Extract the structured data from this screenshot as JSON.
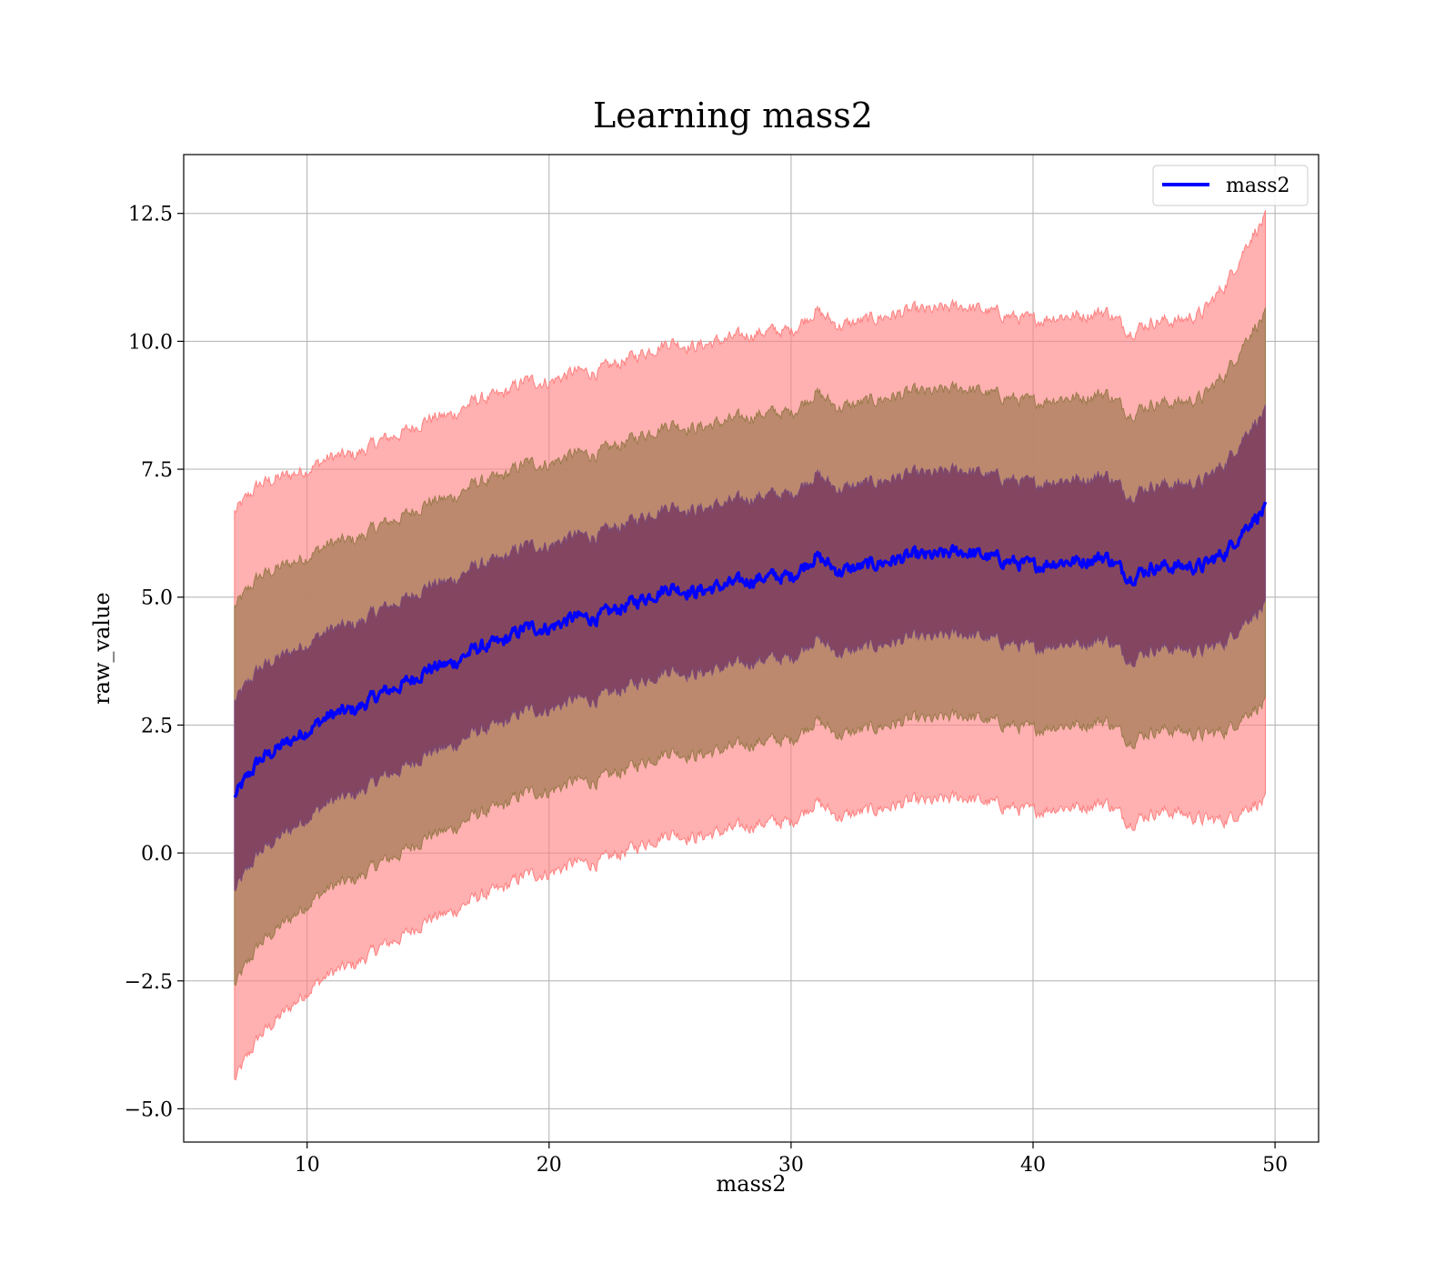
{
  "chart_data": {
    "type": "area",
    "title": "Learning mass2",
    "xlabel": "mass2",
    "ylabel": "raw_value",
    "xlim": [
      4.9,
      51.8
    ],
    "ylim": [
      -5.65,
      13.65
    ],
    "grid": true,
    "legend_position": "top-right",
    "x_ticks": [
      10,
      20,
      30,
      40,
      50
    ],
    "y_ticks": [
      12.5,
      10.0,
      7.5,
      5.0,
      2.5,
      0.0,
      -2.5,
      -5.0
    ],
    "x_tick_labels": [
      "10",
      "20",
      "30",
      "40",
      "50"
    ],
    "y_tick_labels": [
      "12.5",
      "10.0",
      "7.5",
      "5.0",
      "2.5",
      "0.0",
      "−2.5",
      "−5.0"
    ],
    "x": [
      7.0,
      8.0,
      9.0,
      10.0,
      11.0,
      12.0,
      13.0,
      14.0,
      15.0,
      16.0,
      17.0,
      18.0,
      19.0,
      20.0,
      21.0,
      22.0,
      23.0,
      24.0,
      25.0,
      26.0,
      27.0,
      28.0,
      29.0,
      30.0,
      31.0,
      32.0,
      33.0,
      34.0,
      35.0,
      36.0,
      37.0,
      38.0,
      39.0,
      40.0,
      41.0,
      42.0,
      43.0,
      44.0,
      45.0,
      46.0,
      47.0,
      48.0,
      49.0,
      49.6
    ],
    "mean": [
      1.1,
      1.8,
      2.1,
      2.4,
      2.7,
      2.8,
      3.1,
      3.3,
      3.6,
      3.7,
      4.0,
      4.1,
      4.4,
      4.4,
      4.6,
      4.6,
      4.8,
      5.0,
      5.2,
      5.1,
      5.2,
      5.3,
      5.4,
      5.4,
      5.8,
      5.5,
      5.6,
      5.7,
      5.8,
      5.8,
      5.9,
      5.8,
      5.7,
      5.6,
      5.7,
      5.7,
      5.8,
      5.4,
      5.6,
      5.6,
      5.6,
      5.9,
      6.5,
      6.7
    ],
    "std": [
      1.85,
      1.8,
      1.75,
      1.7,
      1.68,
      1.66,
      1.65,
      1.64,
      1.63,
      1.62,
      1.62,
      1.61,
      1.61,
      1.6,
      1.6,
      1.6,
      1.6,
      1.6,
      1.6,
      1.6,
      1.6,
      1.6,
      1.6,
      1.6,
      1.6,
      1.6,
      1.6,
      1.6,
      1.6,
      1.6,
      1.6,
      1.6,
      1.6,
      1.6,
      1.6,
      1.6,
      1.6,
      1.6,
      1.6,
      1.6,
      1.65,
      1.75,
      1.85,
      1.9
    ],
    "series": [
      {
        "name": "mass2",
        "color": "#0000ff"
      }
    ],
    "band_colors": {
      "one_sigma": "#7a3a5e",
      "two_sigma": "#b8876a",
      "three_sigma": "#ff8080"
    }
  }
}
